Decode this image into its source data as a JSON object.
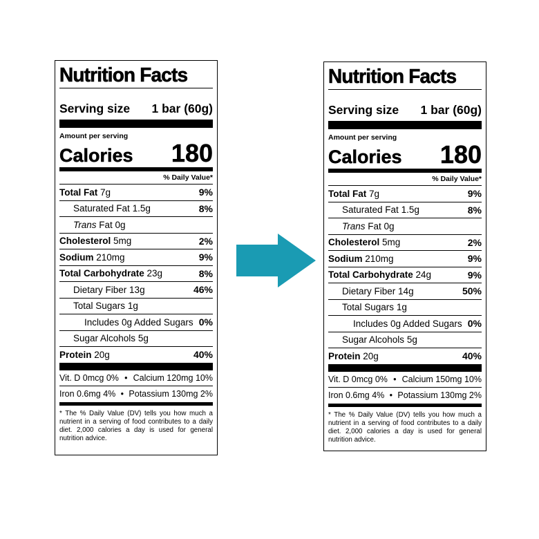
{
  "labels": [
    {
      "title": "Nutrition Facts",
      "serving_label": "Serving size",
      "serving_value": "1 bar (60g)",
      "amount_per_serving": "Amount per serving",
      "calories_label": "Calories",
      "calories_value": "180",
      "dv_header": "% Daily Value*",
      "rows": {
        "total_fat": {
          "name": "Total Fat",
          "amount": "7g",
          "dv": "9%"
        },
        "saturated_fat": {
          "name": "Saturated Fat",
          "amount": "1.5g",
          "dv": "8%"
        },
        "trans_fat": {
          "name": "Trans",
          "amount": "Fat 0g"
        },
        "cholesterol": {
          "name": "Cholesterol",
          "amount": "5mg",
          "dv": "2%"
        },
        "sodium": {
          "name": "Sodium",
          "amount": "210mg",
          "dv": "9%"
        },
        "total_carb": {
          "name": "Total Carbohydrate",
          "amount": "23g",
          "dv": "8%"
        },
        "dietary_fiber": {
          "name": "Dietary Fiber",
          "amount": "13g",
          "dv": "46%"
        },
        "total_sugars": {
          "name": "Total Sugars",
          "amount": "1g"
        },
        "added_sugars": {
          "name": "Includes 0g Added Sugars",
          "dv": "0%"
        },
        "sugar_alcohols": {
          "name": "Sugar Alcohols",
          "amount": "5g"
        },
        "protein": {
          "name": "Protein",
          "amount": "20g",
          "dv": "40%"
        }
      },
      "minerals": {
        "vit_d": "Vit. D 0mcg 0%",
        "calcium": "Calcium 120mg 10%",
        "iron": "Iron 0.6mg 4%",
        "potassium": "Potassium 130mg 2%",
        "bullet": "•"
      },
      "footnote": "* The % Daily Value (DV) tells you how much a nutrient in a serving of food contributes to a daily diet. 2,000 calories a day is used for general nutrition advice."
    },
    {
      "title": "Nutrition Facts",
      "serving_label": "Serving size",
      "serving_value": "1 bar (60g)",
      "amount_per_serving": "Amount per serving",
      "calories_label": "Calories",
      "calories_value": "180",
      "dv_header": "% Daily Value*",
      "rows": {
        "total_fat": {
          "name": "Total Fat",
          "amount": "7g",
          "dv": "9%"
        },
        "saturated_fat": {
          "name": "Saturated Fat",
          "amount": "1.5g",
          "dv": "8%"
        },
        "trans_fat": {
          "name": "Trans",
          "amount": "Fat 0g"
        },
        "cholesterol": {
          "name": "Cholesterol",
          "amount": "5mg",
          "dv": "2%"
        },
        "sodium": {
          "name": "Sodium",
          "amount": "210mg",
          "dv": "9%"
        },
        "total_carb": {
          "name": "Total Carbohydrate",
          "amount": "24g",
          "dv": "9%"
        },
        "dietary_fiber": {
          "name": "Dietary Fiber",
          "amount": "14g",
          "dv": "50%"
        },
        "total_sugars": {
          "name": "Total Sugars",
          "amount": "1g"
        },
        "added_sugars": {
          "name": "Includes 0g Added Sugars",
          "dv": "0%"
        },
        "sugar_alcohols": {
          "name": "Sugar Alcohols",
          "amount": "5g"
        },
        "protein": {
          "name": "Protein",
          "amount": "20g",
          "dv": "40%"
        }
      },
      "minerals": {
        "vit_d": "Vit. D 0mcg 0%",
        "calcium": "Calcium 150mg 10%",
        "iron": "Iron 0.6mg 4%",
        "potassium": "Potassium 130mg 2%",
        "bullet": "•"
      },
      "footnote": "* The % Daily Value (DV) tells you how much a nutrient in a serving of food contributes to a daily diet. 2,000 calories a day is used for general nutrition advice."
    }
  ],
  "arrow": {
    "icon": "right-arrow-icon",
    "color": "#1a9bb3"
  }
}
